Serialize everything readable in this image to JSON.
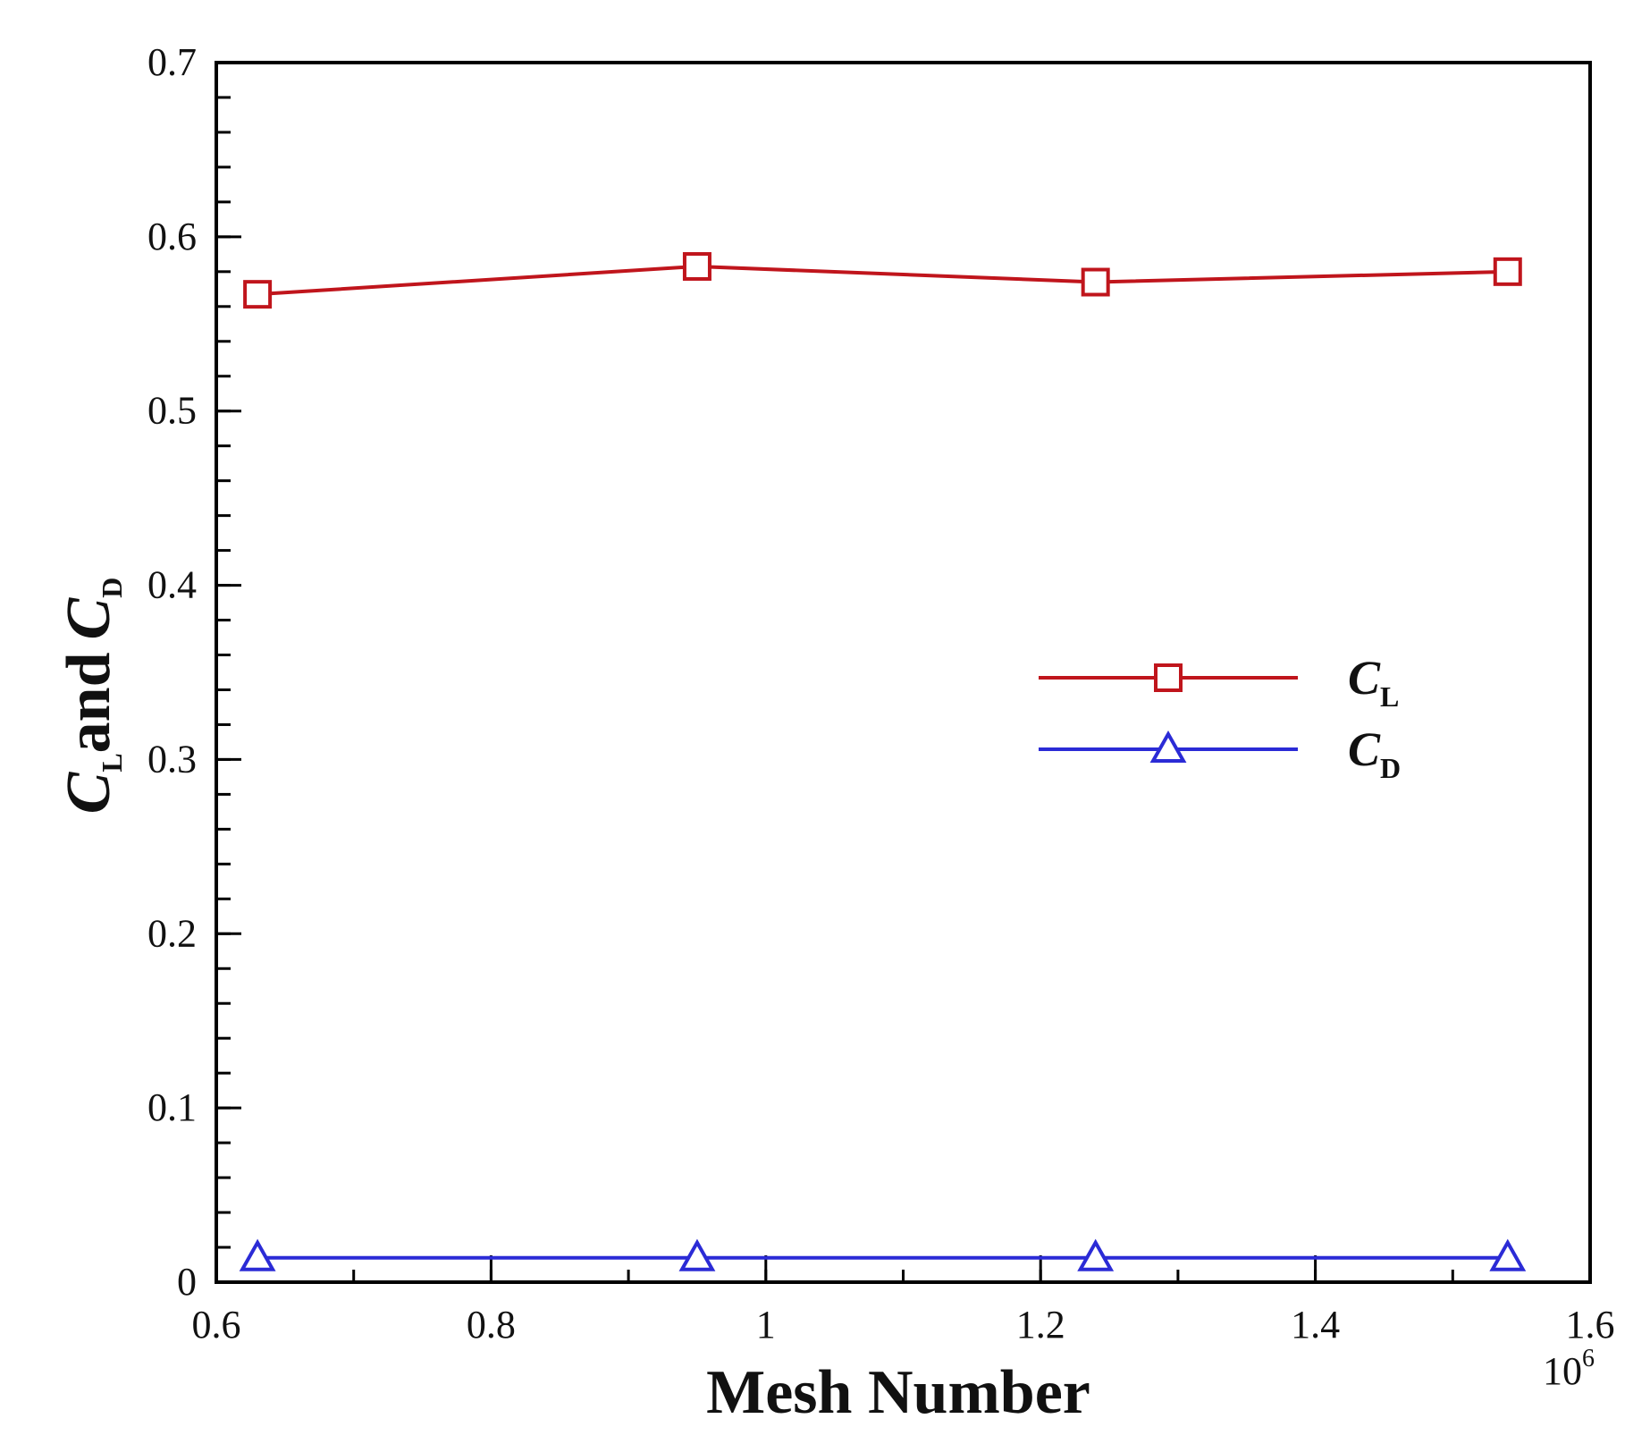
{
  "chart_data": {
    "type": "line",
    "xlabel": "Mesh Number",
    "ylabel": {
      "c1": "C",
      "c1_sub": "L",
      "mid": "and",
      "c2": "C",
      "c2_sub": "D"
    },
    "x_multiplier": {
      "base": "10",
      "exponent": "6"
    },
    "xlim": [
      0.6,
      1.6
    ],
    "ylim": [
      0,
      0.7
    ],
    "x_ticks": [
      "0.6",
      "0.8",
      "1",
      "1.2",
      "1.4",
      "1.6"
    ],
    "x_tick_values": [
      0.6,
      0.8,
      1.0,
      1.2,
      1.4,
      1.6
    ],
    "y_ticks": [
      "0",
      "0.1",
      "0.2",
      "0.3",
      "0.4",
      "0.5",
      "0.6",
      "0.7"
    ],
    "y_tick_values": [
      0,
      0.1,
      0.2,
      0.3,
      0.4,
      0.5,
      0.6,
      0.7
    ],
    "x_minor_step": 0.1,
    "y_minor_step": 0.02,
    "grid": false,
    "legend_position": "right-middle",
    "series": [
      {
        "name": "C",
        "name_sub": "L",
        "color": "#c0151c",
        "marker": "square",
        "x": [
          0.63,
          0.95,
          1.24,
          1.54
        ],
        "y": [
          0.567,
          0.583,
          0.574,
          0.58
        ]
      },
      {
        "name": "C",
        "name_sub": "D",
        "color": "#2b2bd6",
        "marker": "triangle",
        "x": [
          0.63,
          0.95,
          1.24,
          1.54
        ],
        "y": [
          0.014,
          0.014,
          0.014,
          0.014
        ]
      }
    ]
  }
}
